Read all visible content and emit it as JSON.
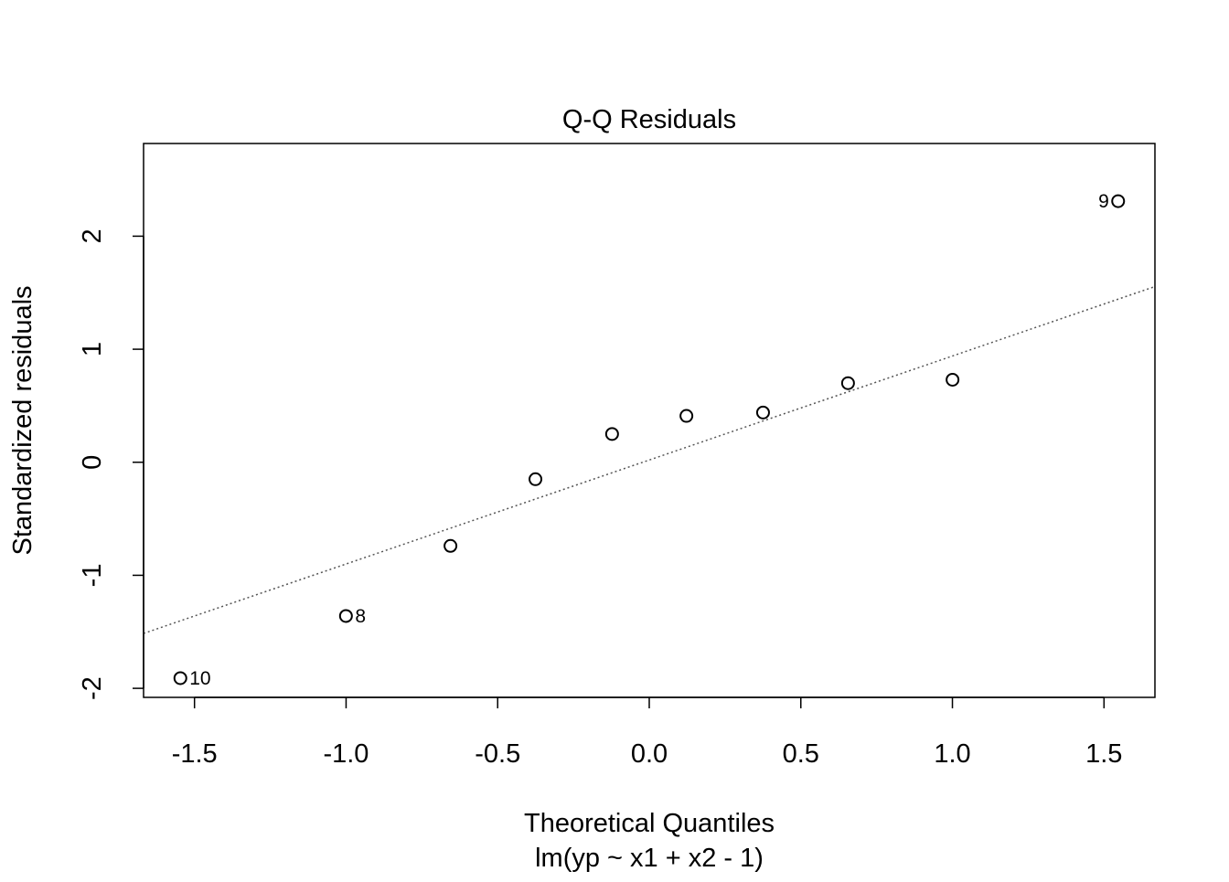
{
  "chart_data": {
    "type": "scatter",
    "title": "Q-Q Residuals",
    "xlabel": "Theoretical Quantiles",
    "subtitle": "lm(yp ~ x1 + x2 - 1)",
    "ylabel": "Standardized residuals",
    "xlim": [
      -1.668,
      1.668
    ],
    "ylim": [
      -2.08,
      2.82
    ],
    "xticks": [
      -1.5,
      -1.0,
      -0.5,
      0.0,
      0.5,
      1.0,
      1.5
    ],
    "xtick_labels": [
      "-1.5",
      "-1.0",
      "-0.5",
      "0.0",
      "0.5",
      "1.0",
      "1.5"
    ],
    "yticks": [
      -2,
      -1,
      0,
      1,
      2
    ],
    "ytick_labels": [
      "-2",
      "-1",
      "0",
      "1",
      "2"
    ],
    "grid": false,
    "points": [
      {
        "x": -1.5466,
        "y": -1.91,
        "label": "10"
      },
      {
        "x": -1.0004,
        "y": -1.36,
        "label": "8"
      },
      {
        "x": -0.6557,
        "y": -0.74,
        "label": ""
      },
      {
        "x": -0.3754,
        "y": -0.15,
        "label": ""
      },
      {
        "x": -0.1226,
        "y": 0.25,
        "label": ""
      },
      {
        "x": 0.1226,
        "y": 0.41,
        "label": ""
      },
      {
        "x": 0.3754,
        "y": 0.44,
        "label": ""
      },
      {
        "x": 0.6557,
        "y": 0.7,
        "label": ""
      },
      {
        "x": 1.0004,
        "y": 0.73,
        "label": ""
      },
      {
        "x": 1.5466,
        "y": 2.31,
        "label": "9"
      }
    ],
    "reference_line": {
      "intercept": 0.02,
      "slope": 0.92,
      "style": "dotted"
    }
  }
}
